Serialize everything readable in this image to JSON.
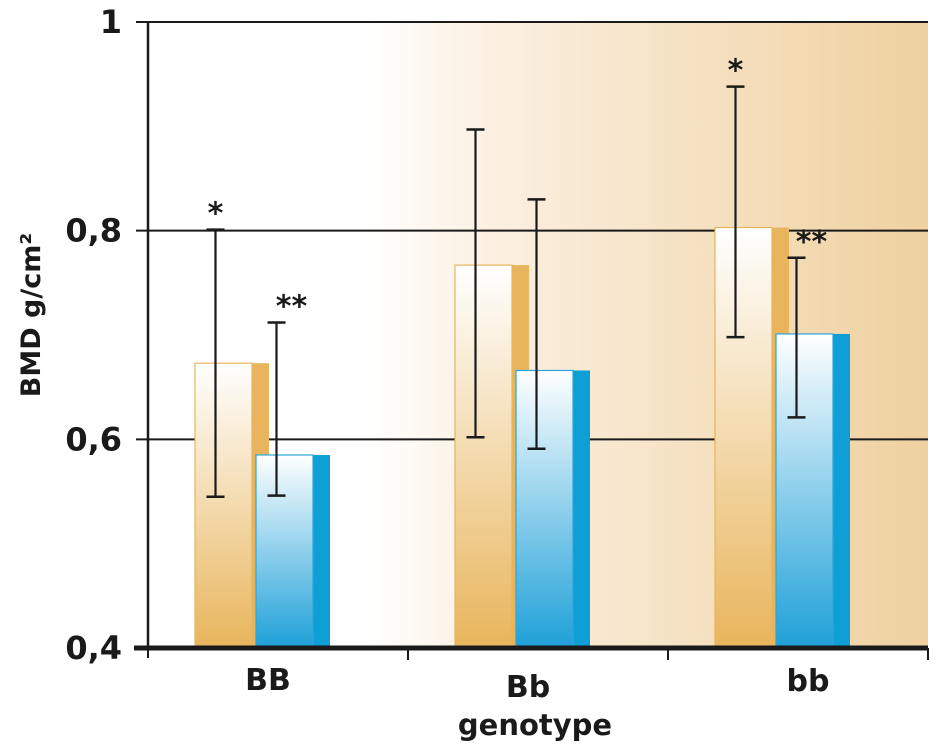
{
  "chart_data": {
    "type": "bar",
    "xlabel": "genotype",
    "ylabel": "BMD g/cm²",
    "ylim": [
      0.4,
      1.0
    ],
    "yticks": [
      {
        "value": 0.4,
        "label": "0,4"
      },
      {
        "value": 0.6,
        "label": "0,6"
      },
      {
        "value": 0.8,
        "label": "0,8"
      },
      {
        "value": 1.0,
        "label": "1"
      }
    ],
    "gridlines": [
      0.6,
      0.8,
      1.0
    ],
    "categories": [
      "BB",
      "Bb",
      "bb"
    ],
    "series": [
      {
        "color": "#e8b55c",
        "values": [
          0.673,
          0.767,
          0.803
        ],
        "error_low": [
          0.545,
          0.602,
          0.698
        ],
        "error_high": [
          0.801,
          0.897,
          0.938
        ],
        "annotations": [
          "*",
          "",
          "*"
        ]
      },
      {
        "color": "#0e9fd7",
        "values": [
          0.585,
          0.666,
          0.701
        ],
        "error_low": [
          0.546,
          0.591,
          0.621
        ],
        "error_high": [
          0.712,
          0.83,
          0.774
        ],
        "annotations": [
          "**",
          "",
          "**"
        ]
      }
    ],
    "background": "gradient-white-to-tan",
    "grid": true,
    "legend": "none"
  }
}
